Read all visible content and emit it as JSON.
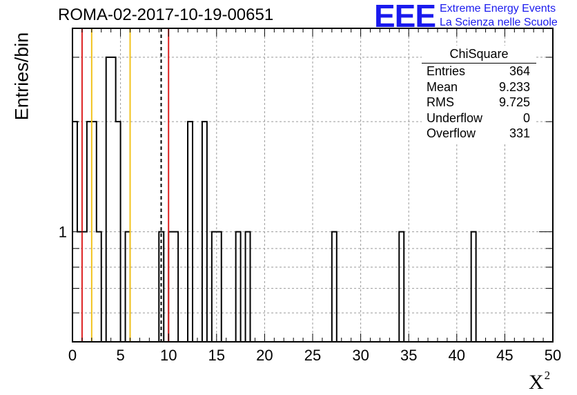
{
  "title": "ROMA-02-2017-10-19-00651",
  "logo": {
    "text": "EEE",
    "line1": "Extreme Energy Events",
    "line2": "La Scienza nelle Scuole",
    "color": "#1a1aee"
  },
  "stats": {
    "title": "ChiSquare",
    "rows": [
      {
        "key": "Entries",
        "value": "364"
      },
      {
        "key": "Mean",
        "value": "9.233"
      },
      {
        "key": "RMS",
        "value": "9.725"
      },
      {
        "key": "Underflow",
        "value": "0"
      },
      {
        "key": "Overflow",
        "value": "331"
      }
    ]
  },
  "chart_data": {
    "type": "bar",
    "histogram": true,
    "xlabel": "X",
    "xlabel_superscript": "2",
    "ylabel": "Entries/bin",
    "xlim": [
      0,
      50
    ],
    "bin_width": 0.5,
    "log_y": true,
    "ylim": [
      0.5,
      3.6
    ],
    "grid": true,
    "xticks": [
      "0",
      "5",
      "10",
      "15",
      "20",
      "25",
      "30",
      "35",
      "40",
      "45",
      "50"
    ],
    "yticks": [
      "1"
    ],
    "bins": [
      {
        "x": 0.0,
        "count": 2
      },
      {
        "x": 0.5,
        "count": 1
      },
      {
        "x": 1.0,
        "count": 1
      },
      {
        "x": 1.5,
        "count": 2
      },
      {
        "x": 2.0,
        "count": 2
      },
      {
        "x": 2.5,
        "count": 1
      },
      {
        "x": 3.5,
        "count": 3
      },
      {
        "x": 4.0,
        "count": 3
      },
      {
        "x": 4.5,
        "count": 2
      },
      {
        "x": 5.5,
        "count": 1
      },
      {
        "x": 9.0,
        "count": 1
      },
      {
        "x": 10.0,
        "count": 1
      },
      {
        "x": 10.5,
        "count": 1
      },
      {
        "x": 12.0,
        "count": 2
      },
      {
        "x": 13.5,
        "count": 2
      },
      {
        "x": 14.5,
        "count": 1
      },
      {
        "x": 15.0,
        "count": 1
      },
      {
        "x": 17.0,
        "count": 1
      },
      {
        "x": 18.0,
        "count": 1
      },
      {
        "x": 27.0,
        "count": 1
      },
      {
        "x": 34.0,
        "count": 1
      },
      {
        "x": 41.5,
        "count": 1
      }
    ],
    "vertical_lines": [
      {
        "x": 1.0,
        "color": "#dd2222",
        "style": "solid"
      },
      {
        "x": 2.0,
        "color": "#f2c21b",
        "style": "solid"
      },
      {
        "x": 6.0,
        "color": "#f2c21b",
        "style": "solid"
      },
      {
        "x": 9.233,
        "color": "#000000",
        "style": "dashed"
      },
      {
        "x": 10.0,
        "color": "#dd2222",
        "style": "solid"
      }
    ]
  }
}
